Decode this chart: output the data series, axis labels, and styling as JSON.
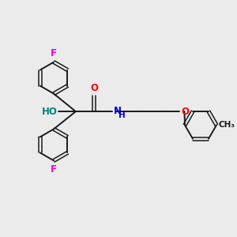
{
  "background_color": "#ebebeb",
  "bond_color": "#1a1a1a",
  "figsize": [
    3.0,
    3.0
  ],
  "dpi": 100,
  "atom_colors": {
    "F": "#e600e6",
    "O": "#ff0000",
    "N": "#0000cc",
    "HO": "#008080",
    "C": "#1a1a1a",
    "H": "#0000cc"
  },
  "lw": 1.4,
  "lw_double": 1.1
}
